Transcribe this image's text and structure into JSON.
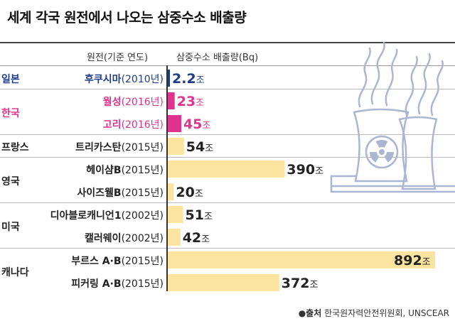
{
  "title": "세계 각국 원전에서 나오는 삼중수소 배출량",
  "header": {
    "plant_col": "원전(기준 연도)",
    "value_col": "삼중수소 배출량(Bq)"
  },
  "source": {
    "bullet": "●출처",
    "text": " 한국원자력안전위원회, UNSCEAR"
  },
  "unit": "조",
  "colors": {
    "japan": "#1f3c88",
    "korea": "#e0338e",
    "other": "#fbe3a0",
    "icon_stroke": "#aab6d2"
  },
  "icon": "nuclear-plant-icon",
  "groups": [
    {
      "country": "일본",
      "color": "japan",
      "rows": [
        0
      ]
    },
    {
      "country": "한국",
      "color": "korea",
      "rows": [
        1,
        2
      ]
    },
    {
      "country": "프랑스",
      "color": "other",
      "rows": [
        3
      ]
    },
    {
      "country": "영국",
      "color": "other",
      "rows": [
        4,
        5
      ]
    },
    {
      "country": "미국",
      "color": "other",
      "rows": [
        6,
        7
      ]
    },
    {
      "country": "캐나다",
      "color": "other",
      "rows": [
        8,
        9
      ]
    }
  ],
  "chart_data": {
    "type": "bar",
    "title": "세계 각국 원전에서 나오는 삼중수소 배출량",
    "categories": [
      "후쿠시마(2010년)",
      "월성(2016년)",
      "고리(2016년)",
      "트리카스탄(2015년)",
      "헤이샴B(2015년)",
      "사이즈웰B(2015년)",
      "디아블로캐니언1(2002년)",
      "캘러웨이(2002년)",
      "부르스 A·B(2015년)",
      "피커링 A·B(2015년)"
    ],
    "plant_names": [
      "후쿠시마",
      "월성",
      "고리",
      "트리카스탄",
      "헤이샴B",
      "사이즈웰B",
      "디아블로캐니언1",
      "캘러웨이",
      "부르스 A·B",
      "피커링 A·B"
    ],
    "years": [
      "(2010년)",
      "(2016년)",
      "(2016년)",
      "(2015년)",
      "(2015년)",
      "(2015년)",
      "(2002년)",
      "(2002년)",
      "(2015년)",
      "(2015년)"
    ],
    "values": [
      2.2,
      23,
      45,
      54,
      390,
      20,
      51,
      42,
      892,
      372
    ],
    "value_labels": [
      "2.2",
      "23",
      "45",
      "54",
      "390",
      "20",
      "51",
      "42",
      "892",
      "372"
    ],
    "xlim": [
      0,
      892
    ],
    "xlabel": "",
    "ylabel": "삼중수소 배출량(Bq)"
  }
}
